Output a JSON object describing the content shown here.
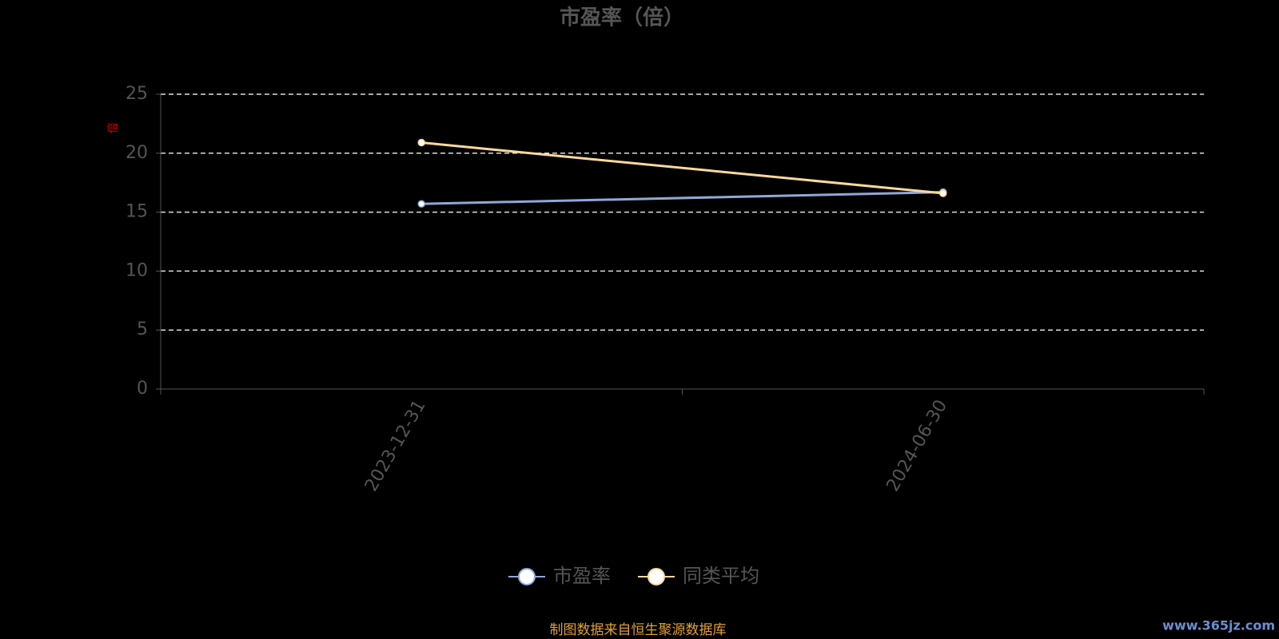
{
  "chart_data": {
    "type": "line",
    "title": "市盈率（倍）",
    "y_axis_label": "倍",
    "categories": [
      "2023-12-31",
      "2024-06-30"
    ],
    "series": [
      {
        "name": "市盈率",
        "color": "#8fa8d6",
        "values": [
          15.7,
          16.7
        ]
      },
      {
        "name": "同类平均",
        "color": "#fcd99a",
        "values": [
          20.9,
          16.6
        ]
      }
    ],
    "ylim": [
      0,
      25
    ],
    "yticks": [
      0,
      5,
      10,
      15,
      20,
      25
    ],
    "grid": true,
    "legend": "bottom",
    "footer": "制图数据来自恒生聚源数据库",
    "watermark": "www.365jz.com"
  }
}
